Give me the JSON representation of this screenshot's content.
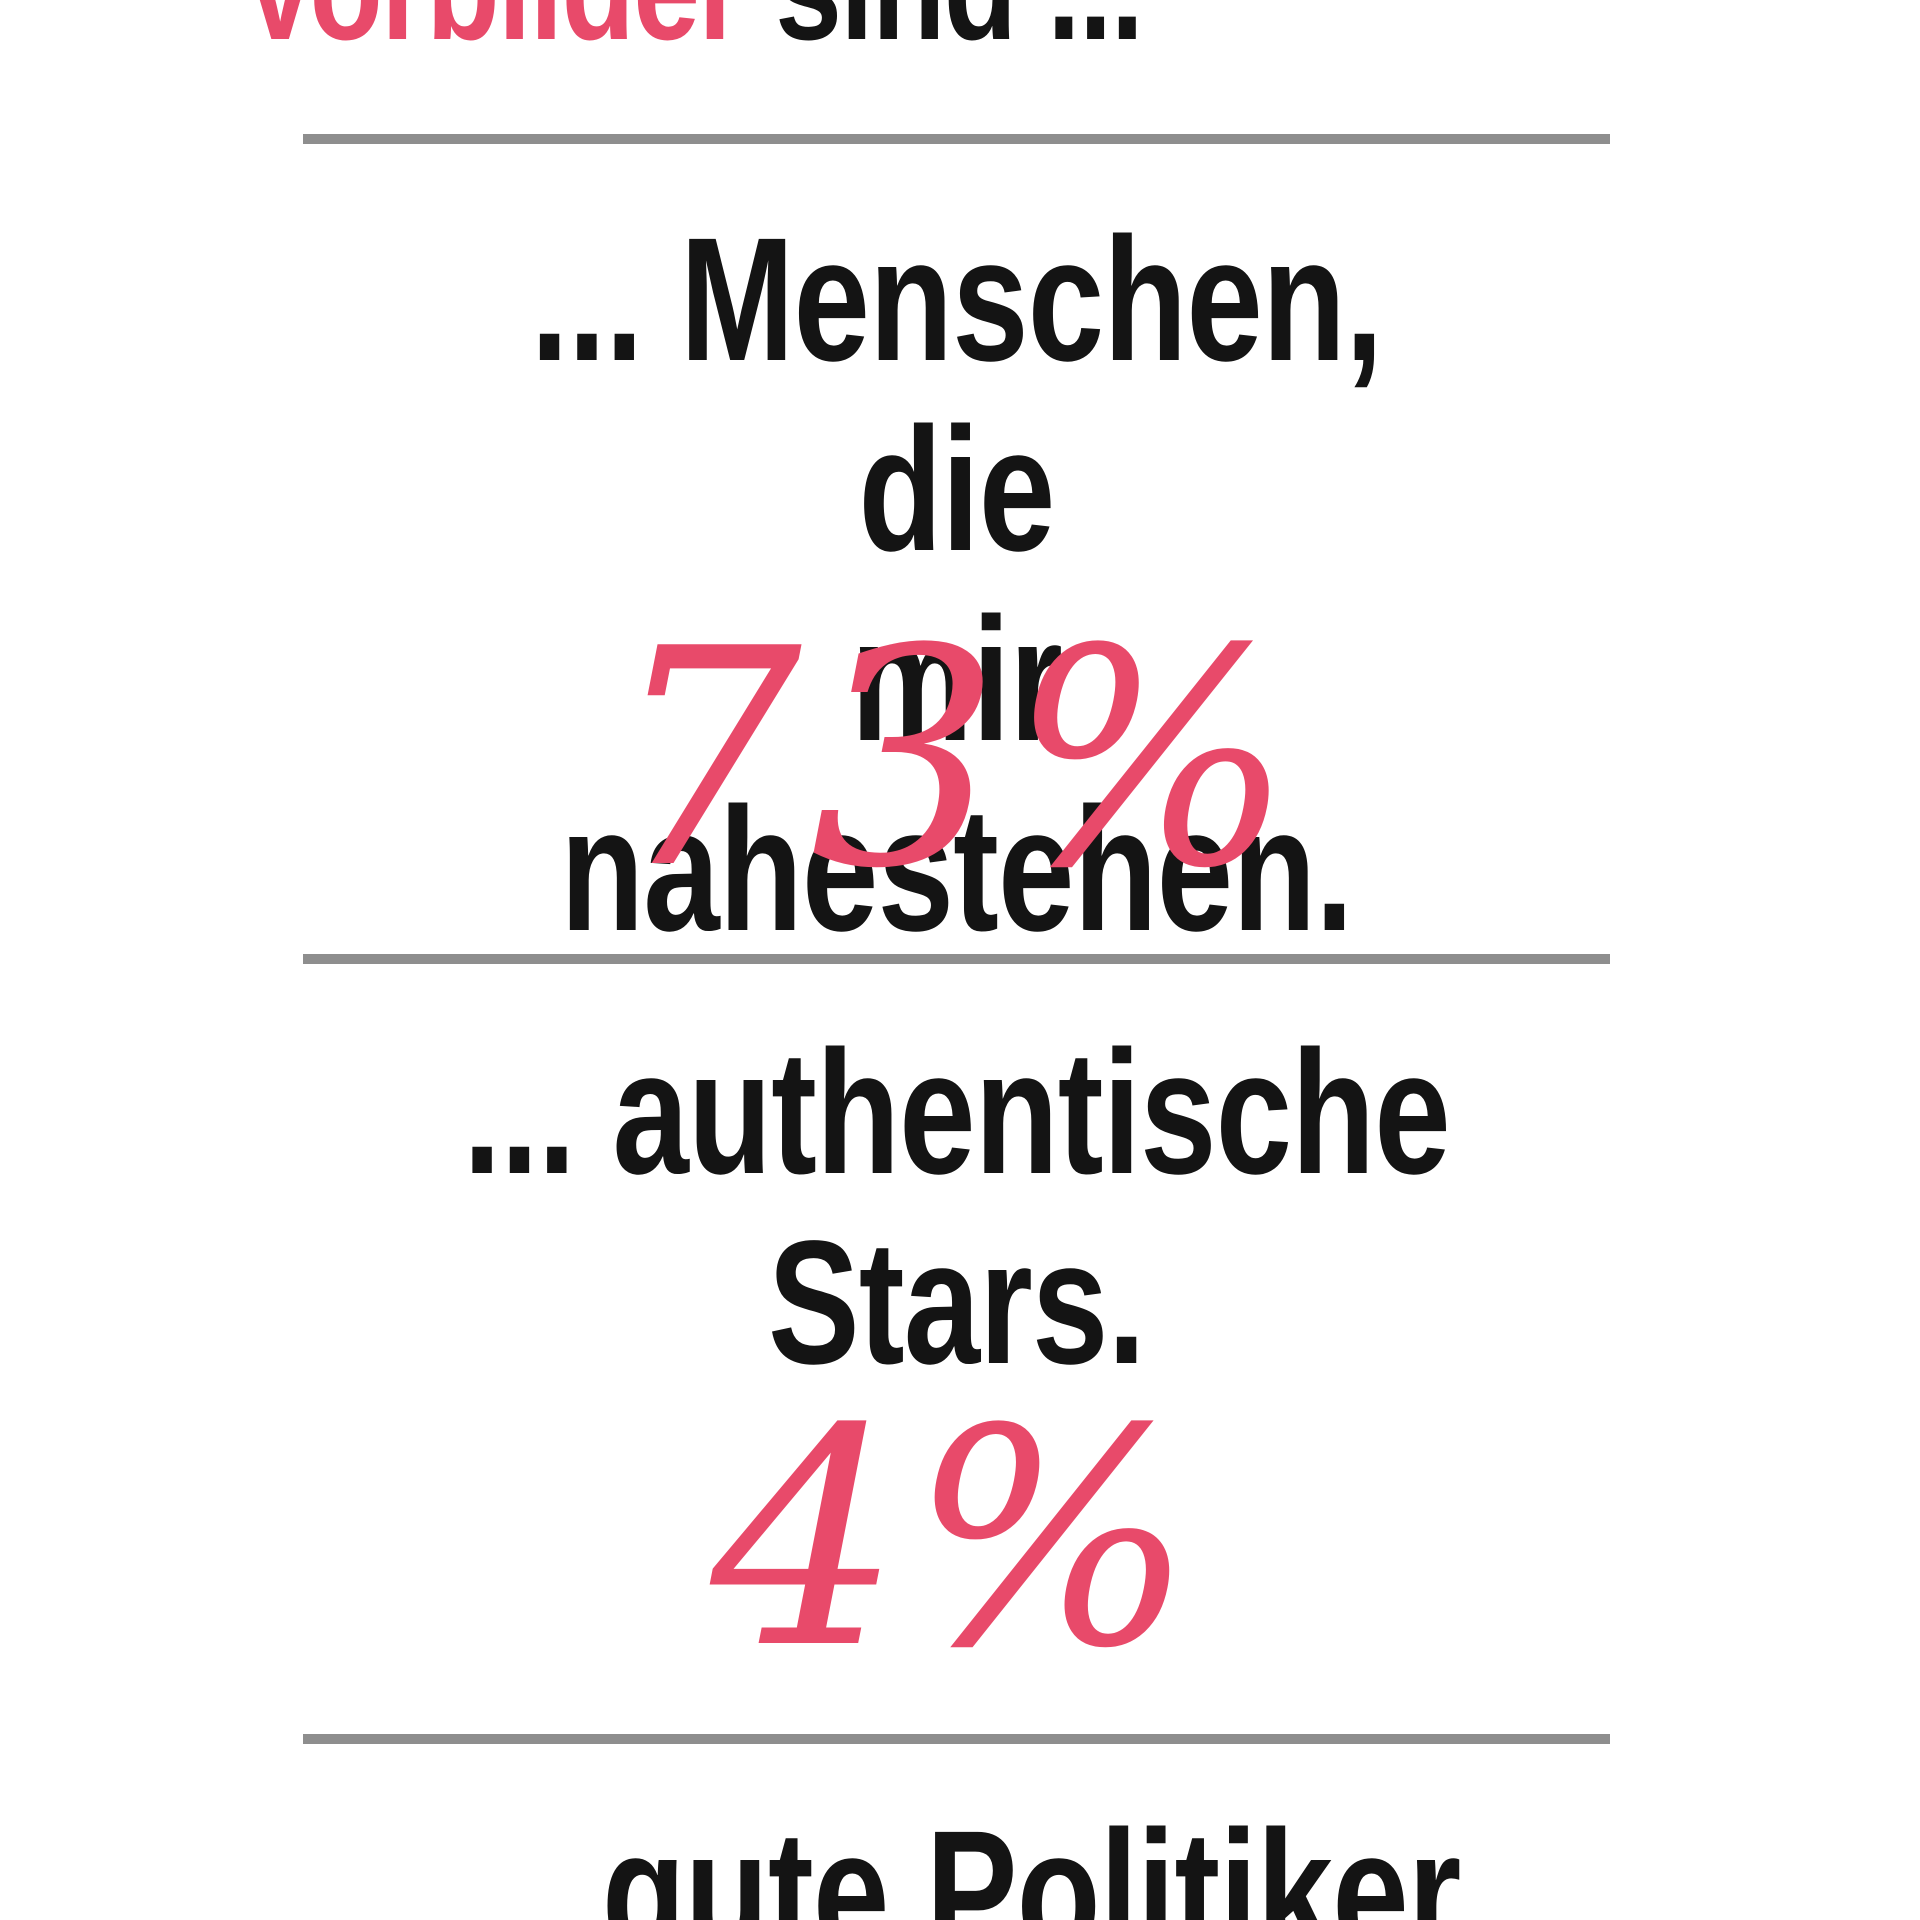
{
  "headline": {
    "accent_text": "Vorbilder",
    "rest_text": " sind ..."
  },
  "items": [
    {
      "label_line_1": "... Menschen, die",
      "label_line_2": "mir nahestehen.",
      "value": "73%"
    },
    {
      "label_line_1": "... authentische",
      "label_line_2": "Stars.",
      "value": "4%"
    },
    {
      "label_line_1": "... gute Politiker",
      "label_line_2": "",
      "value": ""
    }
  ],
  "colors": {
    "accent": "#e84a6a",
    "text": "#141414",
    "rule": "#8e8e8e",
    "background": "#ffffff"
  }
}
